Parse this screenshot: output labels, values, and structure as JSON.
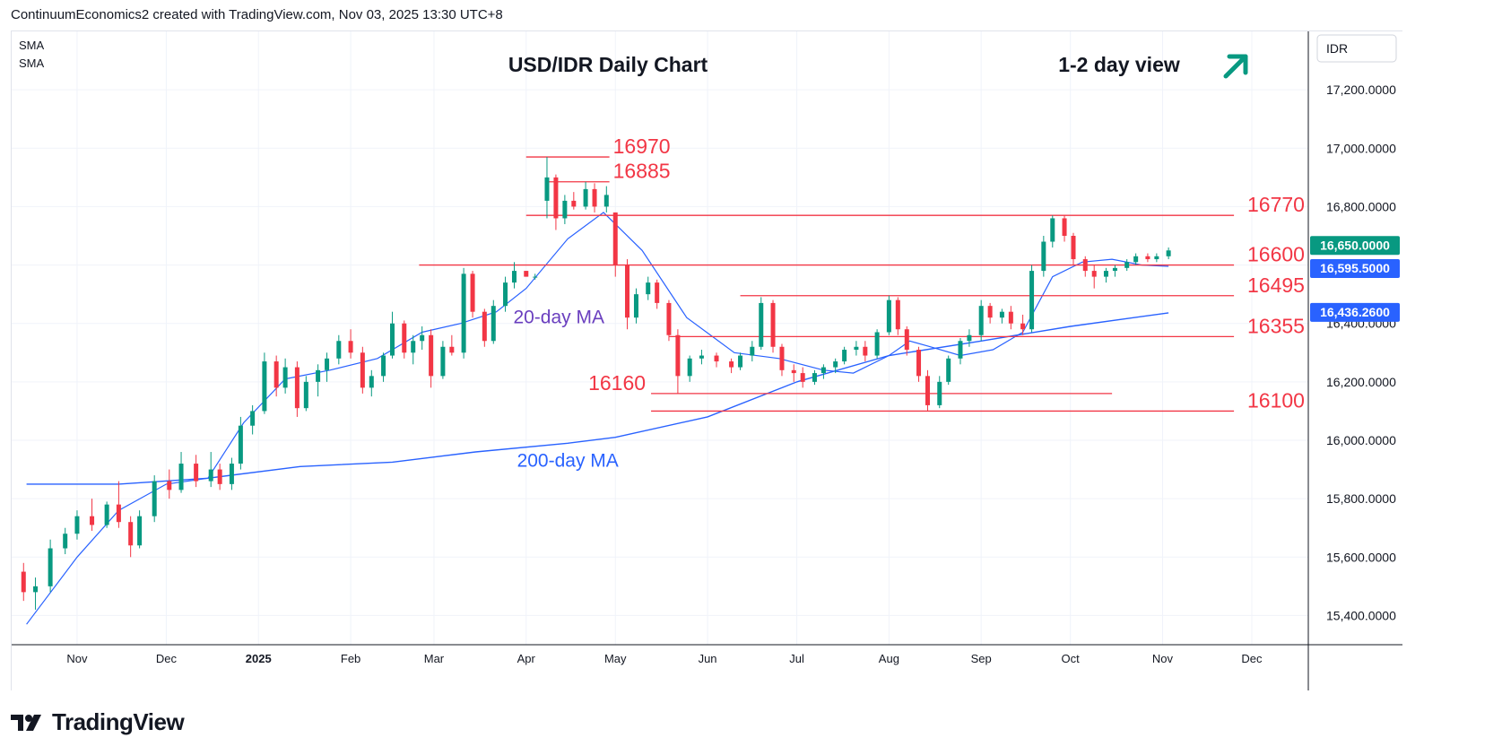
{
  "header": {
    "attribution": "ContinuumEconomics2 created with TradingView.com, Nov 03, 2025 13:30 UTC+8"
  },
  "indicators": [
    "SMA",
    "SMA"
  ],
  "currency_label": "IDR",
  "footer": {
    "brand": "TradingView"
  },
  "colors": {
    "up": "#089981",
    "down": "#f23645",
    "ma": "#2962ff",
    "level": "#f23645",
    "level_label": "#f23645",
    "ma20_label": "#6a3fbf",
    "ma200_label": "#2962ff",
    "arrow": "#089981",
    "grid": "#f0f3fa"
  },
  "chart_data": {
    "type": "candlestick",
    "title": "USD/IDR Daily Chart",
    "view_label": "1-2 day view",
    "view_direction": "up",
    "x_axis_ticks": [
      "Nov",
      "Dec",
      "2025",
      "Feb",
      "Mar",
      "Apr",
      "May",
      "Jun",
      "Jul",
      "Aug",
      "Sep",
      "Oct",
      "Nov",
      "Dec"
    ],
    "y_axis_ticks": [
      "17,200.0000",
      "17,000.0000",
      "16,800.0000",
      "16,600.0000",
      "16,400.0000",
      "16,200.0000",
      "16,000.0000",
      "15,800.0000",
      "15,600.0000",
      "15,400.0000"
    ],
    "ylim": [
      15300,
      17400
    ],
    "price_badges": [
      {
        "label": "16,650.0000",
        "value": 16650,
        "color": "#089981"
      },
      {
        "label": "16,595.5000",
        "value": 16595.5,
        "color": "#2962ff"
      },
      {
        "label": "16,436.2600",
        "value": 16436.26,
        "color": "#2962ff"
      }
    ],
    "levels": [
      {
        "label": "16970",
        "value": 16970,
        "from": "2025-04-01",
        "to": "2025-04-29",
        "label_pos": "right-of-line"
      },
      {
        "label": "16885",
        "value": 16885,
        "from": "2025-04-08",
        "to": "2025-04-29",
        "label_pos": "right-of-line"
      },
      {
        "label": "16770",
        "value": 16770,
        "from": "2025-04-01",
        "to": "2025-11-25",
        "label_pos": "end"
      },
      {
        "label": "16600",
        "value": 16600,
        "from": "2025-02-24",
        "to": "2025-11-25",
        "label_pos": "end"
      },
      {
        "label": "16495",
        "value": 16495,
        "from": "2025-06-12",
        "to": "2025-11-25",
        "label_pos": "end"
      },
      {
        "label": "16355",
        "value": 16355,
        "from": "2025-05-19",
        "to": "2025-11-25",
        "label_pos": "end"
      },
      {
        "label": "16160",
        "value": 16160,
        "from": "2025-05-13",
        "to": "2025-10-15",
        "label_pos": "left-of-line"
      },
      {
        "label": "16100",
        "value": 16100,
        "from": "2025-05-13",
        "to": "2025-11-25",
        "label_pos": "end"
      }
    ],
    "annotations": [
      {
        "text": "20-day MA",
        "date": "2025-04-12",
        "value": 16400
      },
      {
        "text": "200-day MA",
        "date": "2025-04-15",
        "value": 15910
      }
    ],
    "ma20": [
      [
        "2024-10-15",
        15370
      ],
      [
        "2024-11-01",
        15600
      ],
      [
        "2024-11-15",
        15760
      ],
      [
        "2024-12-01",
        15850
      ],
      [
        "2024-12-15",
        15870
      ],
      [
        "2024-12-27",
        16060
      ],
      [
        "2025-01-10",
        16210
      ],
      [
        "2025-01-25",
        16240
      ],
      [
        "2025-02-10",
        16280
      ],
      [
        "2025-02-25",
        16370
      ],
      [
        "2025-03-10",
        16400
      ],
      [
        "2025-03-22",
        16440
      ],
      [
        "2025-04-01",
        16520
      ],
      [
        "2025-04-15",
        16690
      ],
      [
        "2025-04-27",
        16780
      ],
      [
        "2025-05-10",
        16650
      ],
      [
        "2025-05-25",
        16420
      ],
      [
        "2025-06-10",
        16300
      ],
      [
        "2025-06-25",
        16280
      ],
      [
        "2025-07-10",
        16240
      ],
      [
        "2025-07-20",
        16230
      ],
      [
        "2025-08-01",
        16290
      ],
      [
        "2025-08-08",
        16340
      ],
      [
        "2025-08-15",
        16320
      ],
      [
        "2025-08-25",
        16290
      ],
      [
        "2025-09-05",
        16310
      ],
      [
        "2025-09-15",
        16370
      ],
      [
        "2025-09-25",
        16560
      ],
      [
        "2025-10-05",
        16610
      ],
      [
        "2025-10-15",
        16620
      ],
      [
        "2025-10-25",
        16600
      ],
      [
        "2025-11-03",
        16595.5
      ]
    ],
    "ma200": [
      [
        "2024-10-15",
        15850
      ],
      [
        "2024-11-15",
        15850
      ],
      [
        "2024-12-15",
        15870
      ],
      [
        "2025-01-15",
        15910
      ],
      [
        "2025-02-15",
        15925
      ],
      [
        "2025-03-15",
        15960
      ],
      [
        "2025-04-15",
        15990
      ],
      [
        "2025-05-01",
        16010
      ],
      [
        "2025-06-01",
        16080
      ],
      [
        "2025-07-01",
        16200
      ],
      [
        "2025-08-01",
        16290
      ],
      [
        "2025-09-01",
        16340
      ],
      [
        "2025-10-01",
        16390
      ],
      [
        "2025-11-03",
        16436.26
      ]
    ],
    "candles": [
      [
        "2024-10-14",
        15550,
        15580,
        15450,
        15480
      ],
      [
        "2024-10-18",
        15480,
        15530,
        15420,
        15500
      ],
      [
        "2024-10-23",
        15500,
        15660,
        15480,
        15630
      ],
      [
        "2024-10-28",
        15630,
        15700,
        15610,
        15680
      ],
      [
        "2024-11-01",
        15680,
        15760,
        15660,
        15740
      ],
      [
        "2024-11-06",
        15740,
        15800,
        15690,
        15710
      ],
      [
        "2024-11-11",
        15710,
        15790,
        15700,
        15780
      ],
      [
        "2024-11-15",
        15780,
        15860,
        15700,
        15720
      ],
      [
        "2024-11-19",
        15720,
        15740,
        15600,
        15640
      ],
      [
        "2024-11-22",
        15640,
        15760,
        15630,
        15740
      ],
      [
        "2024-11-27",
        15740,
        15880,
        15720,
        15860
      ],
      [
        "2024-12-02",
        15860,
        15900,
        15800,
        15830
      ],
      [
        "2024-12-06",
        15830,
        15960,
        15820,
        15920
      ],
      [
        "2024-12-11",
        15920,
        15950,
        15840,
        15860
      ],
      [
        "2024-12-16",
        15860,
        15960,
        15840,
        15900
      ],
      [
        "2024-12-19",
        15900,
        15920,
        15830,
        15850
      ],
      [
        "2024-12-23",
        15850,
        15940,
        15830,
        15920
      ],
      [
        "2024-12-26",
        15920,
        16080,
        15900,
        16050
      ],
      [
        "2024-12-30",
        16050,
        16120,
        16020,
        16100
      ],
      [
        "2025-01-03",
        16100,
        16300,
        16090,
        16270
      ],
      [
        "2025-01-07",
        16270,
        16290,
        16150,
        16180
      ],
      [
        "2025-01-10",
        16180,
        16280,
        16160,
        16250
      ],
      [
        "2025-01-14",
        16250,
        16270,
        16080,
        16110
      ],
      [
        "2025-01-17",
        16110,
        16220,
        16100,
        16200
      ],
      [
        "2025-01-21",
        16200,
        16260,
        16150,
        16240
      ],
      [
        "2025-01-24",
        16240,
        16300,
        16200,
        16280
      ],
      [
        "2025-01-28",
        16280,
        16360,
        16260,
        16340
      ],
      [
        "2025-02-01",
        16340,
        16380,
        16280,
        16300
      ],
      [
        "2025-02-05",
        16300,
        16320,
        16160,
        16180
      ],
      [
        "2025-02-08",
        16180,
        16240,
        16150,
        16220
      ],
      [
        "2025-02-12",
        16220,
        16300,
        16200,
        16290
      ],
      [
        "2025-02-15",
        16290,
        16440,
        16280,
        16400
      ],
      [
        "2025-02-19",
        16400,
        16410,
        16280,
        16300
      ],
      [
        "2025-02-22",
        16300,
        16360,
        16260,
        16340
      ],
      [
        "2025-02-25",
        16340,
        16390,
        16310,
        16360
      ],
      [
        "2025-02-28",
        16360,
        16380,
        16180,
        16220
      ],
      [
        "2025-03-04",
        16220,
        16340,
        16210,
        16320
      ],
      [
        "2025-03-07",
        16320,
        16360,
        16290,
        16300
      ],
      [
        "2025-03-11",
        16300,
        16590,
        16280,
        16570
      ],
      [
        "2025-03-14",
        16570,
        16580,
        16420,
        16440
      ],
      [
        "2025-03-18",
        16440,
        16450,
        16320,
        16340
      ],
      [
        "2025-03-21",
        16340,
        16480,
        16330,
        16460
      ],
      [
        "2025-03-25",
        16460,
        16560,
        16440,
        16540
      ],
      [
        "2025-03-28",
        16540,
        16610,
        16520,
        16580
      ],
      [
        "2025-04-01",
        16580,
        16580,
        16560,
        16560
      ],
      [
        "2025-04-04",
        16560,
        16570,
        16550,
        16560
      ],
      [
        "2025-04-08",
        16820,
        16970,
        16760,
        16900
      ],
      [
        "2025-04-11",
        16900,
        16910,
        16720,
        16760
      ],
      [
        "2025-04-14",
        16760,
        16840,
        16740,
        16820
      ],
      [
        "2025-04-17",
        16820,
        16850,
        16790,
        16800
      ],
      [
        "2025-04-21",
        16800,
        16885,
        16790,
        16860
      ],
      [
        "2025-04-24",
        16860,
        16880,
        16780,
        16800
      ],
      [
        "2025-04-28",
        16800,
        16870,
        16780,
        16840
      ],
      [
        "2025-05-01",
        16780,
        16780,
        16560,
        16600
      ],
      [
        "2025-05-05",
        16600,
        16620,
        16380,
        16420
      ],
      [
        "2025-05-08",
        16420,
        16520,
        16400,
        16500
      ],
      [
        "2025-05-12",
        16500,
        16560,
        16480,
        16540
      ],
      [
        "2025-05-15",
        16540,
        16550,
        16450,
        16470
      ],
      [
        "2025-05-19",
        16470,
        16480,
        16340,
        16360
      ],
      [
        "2025-05-22",
        16360,
        16380,
        16160,
        16220
      ],
      [
        "2025-05-26",
        16220,
        16290,
        16200,
        16280
      ],
      [
        "2025-05-30",
        16280,
        16310,
        16260,
        16290
      ],
      [
        "2025-06-04",
        16290,
        16300,
        16250,
        16270
      ],
      [
        "2025-06-09",
        16270,
        16280,
        16230,
        16250
      ],
      [
        "2025-06-12",
        16250,
        16300,
        16240,
        16290
      ],
      [
        "2025-06-16",
        16290,
        16340,
        16270,
        16320
      ],
      [
        "2025-06-19",
        16320,
        16490,
        16310,
        16470
      ],
      [
        "2025-06-23",
        16470,
        16480,
        16300,
        16320
      ],
      [
        "2025-06-26",
        16320,
        16330,
        16220,
        16240
      ],
      [
        "2025-06-30",
        16240,
        16260,
        16200,
        16230
      ],
      [
        "2025-07-03",
        16230,
        16250,
        16180,
        16200
      ],
      [
        "2025-07-07",
        16200,
        16240,
        16190,
        16230
      ],
      [
        "2025-07-10",
        16230,
        16260,
        16210,
        16250
      ],
      [
        "2025-07-14",
        16250,
        16280,
        16230,
        16270
      ],
      [
        "2025-07-17",
        16270,
        16320,
        16260,
        16310
      ],
      [
        "2025-07-21",
        16310,
        16340,
        16290,
        16320
      ],
      [
        "2025-07-24",
        16320,
        16340,
        16270,
        16290
      ],
      [
        "2025-07-28",
        16290,
        16380,
        16280,
        16370
      ],
      [
        "2025-08-01",
        16370,
        16495,
        16360,
        16480
      ],
      [
        "2025-08-04",
        16480,
        16490,
        16360,
        16380
      ],
      [
        "2025-08-07",
        16380,
        16390,
        16290,
        16310
      ],
      [
        "2025-08-11",
        16310,
        16320,
        16200,
        16220
      ],
      [
        "2025-08-14",
        16220,
        16240,
        16100,
        16120
      ],
      [
        "2025-08-18",
        16120,
        16220,
        16110,
        16200
      ],
      [
        "2025-08-21",
        16200,
        16290,
        16190,
        16280
      ],
      [
        "2025-08-25",
        16280,
        16350,
        16260,
        16340
      ],
      [
        "2025-08-28",
        16340,
        16380,
        16320,
        16360
      ],
      [
        "2025-09-01",
        16360,
        16480,
        16340,
        16460
      ],
      [
        "2025-09-04",
        16460,
        16470,
        16400,
        16420
      ],
      [
        "2025-09-08",
        16420,
        16450,
        16400,
        16440
      ],
      [
        "2025-09-11",
        16440,
        16460,
        16380,
        16400
      ],
      [
        "2025-09-15",
        16400,
        16430,
        16360,
        16380
      ],
      [
        "2025-09-18",
        16380,
        16600,
        16370,
        16580
      ],
      [
        "2025-09-22",
        16580,
        16700,
        16560,
        16680
      ],
      [
        "2025-09-25",
        16680,
        16770,
        16660,
        16760
      ],
      [
        "2025-09-29",
        16760,
        16770,
        16680,
        16700
      ],
      [
        "2025-10-02",
        16700,
        16710,
        16600,
        16620
      ],
      [
        "2025-10-06",
        16620,
        16630,
        16560,
        16580
      ],
      [
        "2025-10-09",
        16580,
        16600,
        16520,
        16560
      ],
      [
        "2025-10-13",
        16560,
        16590,
        16540,
        16580
      ],
      [
        "2025-10-16",
        16580,
        16600,
        16560,
        16590
      ],
      [
        "2025-10-20",
        16590,
        16620,
        16580,
        16610
      ],
      [
        "2025-10-23",
        16610,
        16640,
        16600,
        16630
      ],
      [
        "2025-10-27",
        16630,
        16640,
        16610,
        16620
      ],
      [
        "2025-10-30",
        16620,
        16640,
        16610,
        16630
      ],
      [
        "2025-11-03",
        16630,
        16660,
        16620,
        16650
      ]
    ]
  }
}
